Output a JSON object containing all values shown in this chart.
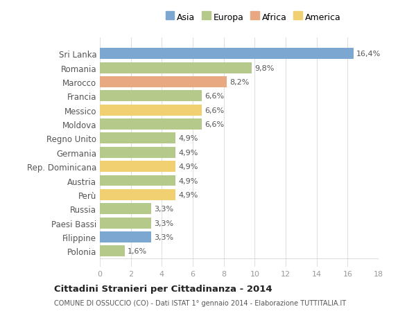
{
  "categories": [
    "Sri Lanka",
    "Romania",
    "Marocco",
    "Francia",
    "Messico",
    "Moldova",
    "Regno Unito",
    "Germania",
    "Rep. Dominicana",
    "Austria",
    "Perù",
    "Russia",
    "Paesi Bassi",
    "Filippine",
    "Polonia"
  ],
  "values": [
    16.4,
    9.8,
    8.2,
    6.6,
    6.6,
    6.6,
    4.9,
    4.9,
    4.9,
    4.9,
    4.9,
    3.3,
    3.3,
    3.3,
    1.6
  ],
  "labels": [
    "16,4%",
    "9,8%",
    "8,2%",
    "6,6%",
    "6,6%",
    "6,6%",
    "4,9%",
    "4,9%",
    "4,9%",
    "4,9%",
    "4,9%",
    "3,3%",
    "3,3%",
    "3,3%",
    "1,6%"
  ],
  "colors": [
    "#7ba7d0",
    "#b5c98a",
    "#e8a882",
    "#b5c98a",
    "#f0d070",
    "#b5c98a",
    "#b5c98a",
    "#b5c98a",
    "#f0d070",
    "#b5c98a",
    "#f0d070",
    "#b5c98a",
    "#b5c98a",
    "#7ba7d0",
    "#b5c98a"
  ],
  "continent_labels": [
    "Asia",
    "Europa",
    "Africa",
    "America"
  ],
  "continent_colors": [
    "#7ba7d0",
    "#b5c98a",
    "#e8a882",
    "#f0d070"
  ],
  "title": "Cittadini Stranieri per Cittadinanza - 2014",
  "subtitle": "COMUNE DI OSSUCCIO (CO) - Dati ISTAT 1° gennaio 2014 - Elaborazione TUTTITALIA.IT",
  "xlim": [
    0,
    18
  ],
  "xticks": [
    0,
    2,
    4,
    6,
    8,
    10,
    12,
    14,
    16,
    18
  ],
  "background_color": "#ffffff",
  "grid_color": "#e0e0e0",
  "bar_height": 0.78
}
